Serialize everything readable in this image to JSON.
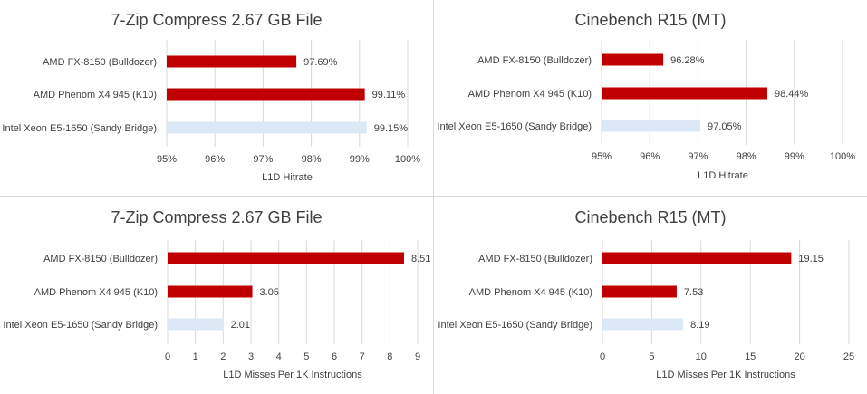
{
  "colors": {
    "red": "#c00000",
    "light": "#dce8f6",
    "text": "#404040",
    "grid": "#d9d9d9"
  },
  "chart_data": [
    {
      "type": "bar",
      "title": "7-Zip Compress 2.67 GB File",
      "xlabel": "L1D Hitrate",
      "categories": [
        "AMD FX-8150 (Bulldozer)",
        "AMD Phenom X4 945 (K10)",
        "Intel Xeon E5-1650 (Sandy Bridge)"
      ],
      "values": [
        97.69,
        99.11,
        99.15
      ],
      "data_labels": [
        "97.69%",
        "99.11%",
        "99.15%"
      ],
      "bar_colors": [
        "red",
        "red",
        "light"
      ],
      "xlim": [
        95,
        100
      ],
      "xticks": [
        95,
        96,
        97,
        98,
        99,
        100
      ],
      "xtick_labels": [
        "95%",
        "96%",
        "97%",
        "98%",
        "99%",
        "100%"
      ],
      "grid": true
    },
    {
      "type": "bar",
      "title": "Cinebench R15 (MT)",
      "xlabel": "L1D Hitrate",
      "categories": [
        "AMD FX-8150 (Bulldozer)",
        "AMD Phenom X4 945 (K10)",
        "Intel Xeon E5-1650 (Sandy Bridge)"
      ],
      "values": [
        96.28,
        98.44,
        97.05
      ],
      "data_labels": [
        "96.28%",
        "98.44%",
        "97.05%"
      ],
      "bar_colors": [
        "red",
        "red",
        "light"
      ],
      "xlim": [
        95,
        100
      ],
      "xticks": [
        95,
        96,
        97,
        98,
        99,
        100
      ],
      "xtick_labels": [
        "95%",
        "96%",
        "97%",
        "98%",
        "99%",
        "100%"
      ],
      "grid": true
    },
    {
      "type": "bar",
      "title": "7-Zip Compress 2.67 GB File",
      "xlabel": "L1D Misses Per 1K Instructions",
      "categories": [
        "AMD FX-8150 (Bulldozer)",
        "AMD Phenom X4 945 (K10)",
        "Intel Xeon E5-1650 (Sandy Bridge)"
      ],
      "values": [
        8.51,
        3.05,
        2.01
      ],
      "data_labels": [
        "8.51",
        "3.05",
        "2.01"
      ],
      "bar_colors": [
        "red",
        "red",
        "light"
      ],
      "xlim": [
        0,
        9
      ],
      "xticks": [
        0,
        1,
        2,
        3,
        4,
        5,
        6,
        7,
        8,
        9
      ],
      "xtick_labels": [
        "0",
        "1",
        "2",
        "3",
        "4",
        "5",
        "6",
        "7",
        "8",
        "9"
      ],
      "grid": true
    },
    {
      "type": "bar",
      "title": "Cinebench R15 (MT)",
      "xlabel": "L1D Misses Per 1K Instructions",
      "categories": [
        "AMD FX-8150 (Bulldozer)",
        "AMD Phenom X4 945 (K10)",
        "Intel Xeon E5-1650 (Sandy Bridge)"
      ],
      "values": [
        19.15,
        7.53,
        8.19
      ],
      "data_labels": [
        "19.15",
        "7.53",
        "8.19"
      ],
      "bar_colors": [
        "red",
        "red",
        "light"
      ],
      "xlim": [
        0,
        25
      ],
      "xticks": [
        0,
        5,
        10,
        15,
        20,
        25
      ],
      "xtick_labels": [
        "0",
        "5",
        "10",
        "15",
        "20",
        "25"
      ],
      "grid": true
    }
  ]
}
